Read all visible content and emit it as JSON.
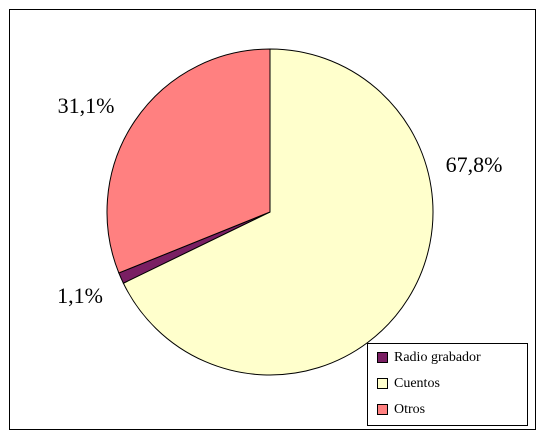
{
  "chart_data": {
    "type": "pie",
    "categories": [
      "Radio grabador",
      "Cuentos",
      "Otros"
    ],
    "values": [
      1.1,
      67.8,
      31.1
    ],
    "value_labels": [
      "1,1%",
      "67,8%",
      "31,1%"
    ],
    "colors": [
      "#7a1f63",
      "#ffffcc",
      "#ff8080"
    ],
    "legend": "bottom-right"
  }
}
